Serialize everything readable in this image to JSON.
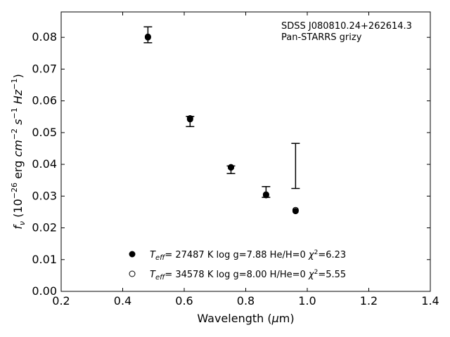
{
  "chart_data": {
    "type": "scatter",
    "annotation": [
      "SDSS J080810.24+262614.3",
      "Pan-STARRS grizy"
    ],
    "xlabel": "Wavelength (μm)",
    "ylabel": "fν (10⁻²⁶ erg cm⁻² s⁻¹ Hz⁻¹)",
    "xlim": [
      0.2,
      1.4
    ],
    "ylim": [
      0.0,
      0.088
    ],
    "xticks": [
      0.2,
      0.4,
      0.6,
      0.8,
      1.0,
      1.2,
      1.4
    ],
    "xtick_labels": [
      "0.2",
      "0.4",
      "0.6",
      "0.8",
      "1.0",
      "1.2",
      "1.4"
    ],
    "yticks": [
      0.0,
      0.01,
      0.02,
      0.03,
      0.04,
      0.05,
      0.06,
      0.07,
      0.08
    ],
    "ytick_labels": [
      "0.00",
      "0.01",
      "0.02",
      "0.03",
      "0.04",
      "0.05",
      "0.06",
      "0.07",
      "0.08"
    ],
    "grid": false,
    "legend_position": "bottom-center",
    "observed": {
      "x": [
        0.482,
        0.619,
        0.752,
        0.866,
        0.962
      ],
      "y": [
        0.0808,
        0.0535,
        0.0383,
        0.0313,
        0.0395
      ],
      "yerr": [
        0.0025,
        0.0016,
        0.0012,
        0.0017,
        0.0071
      ]
    },
    "series": [
      {
        "name": "Teff= 27487 K  log g=7.88  He/H=0  χ²=6.23",
        "marker": "filled",
        "x": [
          0.482,
          0.619,
          0.752,
          0.866,
          0.962
        ],
        "y": [
          0.08,
          0.0542,
          0.039,
          0.0303,
          0.0253
        ]
      },
      {
        "name": "Teff= 34578 K  log g=8.00  H/He=0  χ²=5.55",
        "marker": "open",
        "x": [
          0.482,
          0.619,
          0.752,
          0.866,
          0.962
        ],
        "y": [
          0.0802,
          0.0545,
          0.0391,
          0.0305,
          0.0256
        ]
      }
    ],
    "colors": {
      "marker": "#000000",
      "errorbar": "#000000",
      "axes": "#000000"
    }
  }
}
